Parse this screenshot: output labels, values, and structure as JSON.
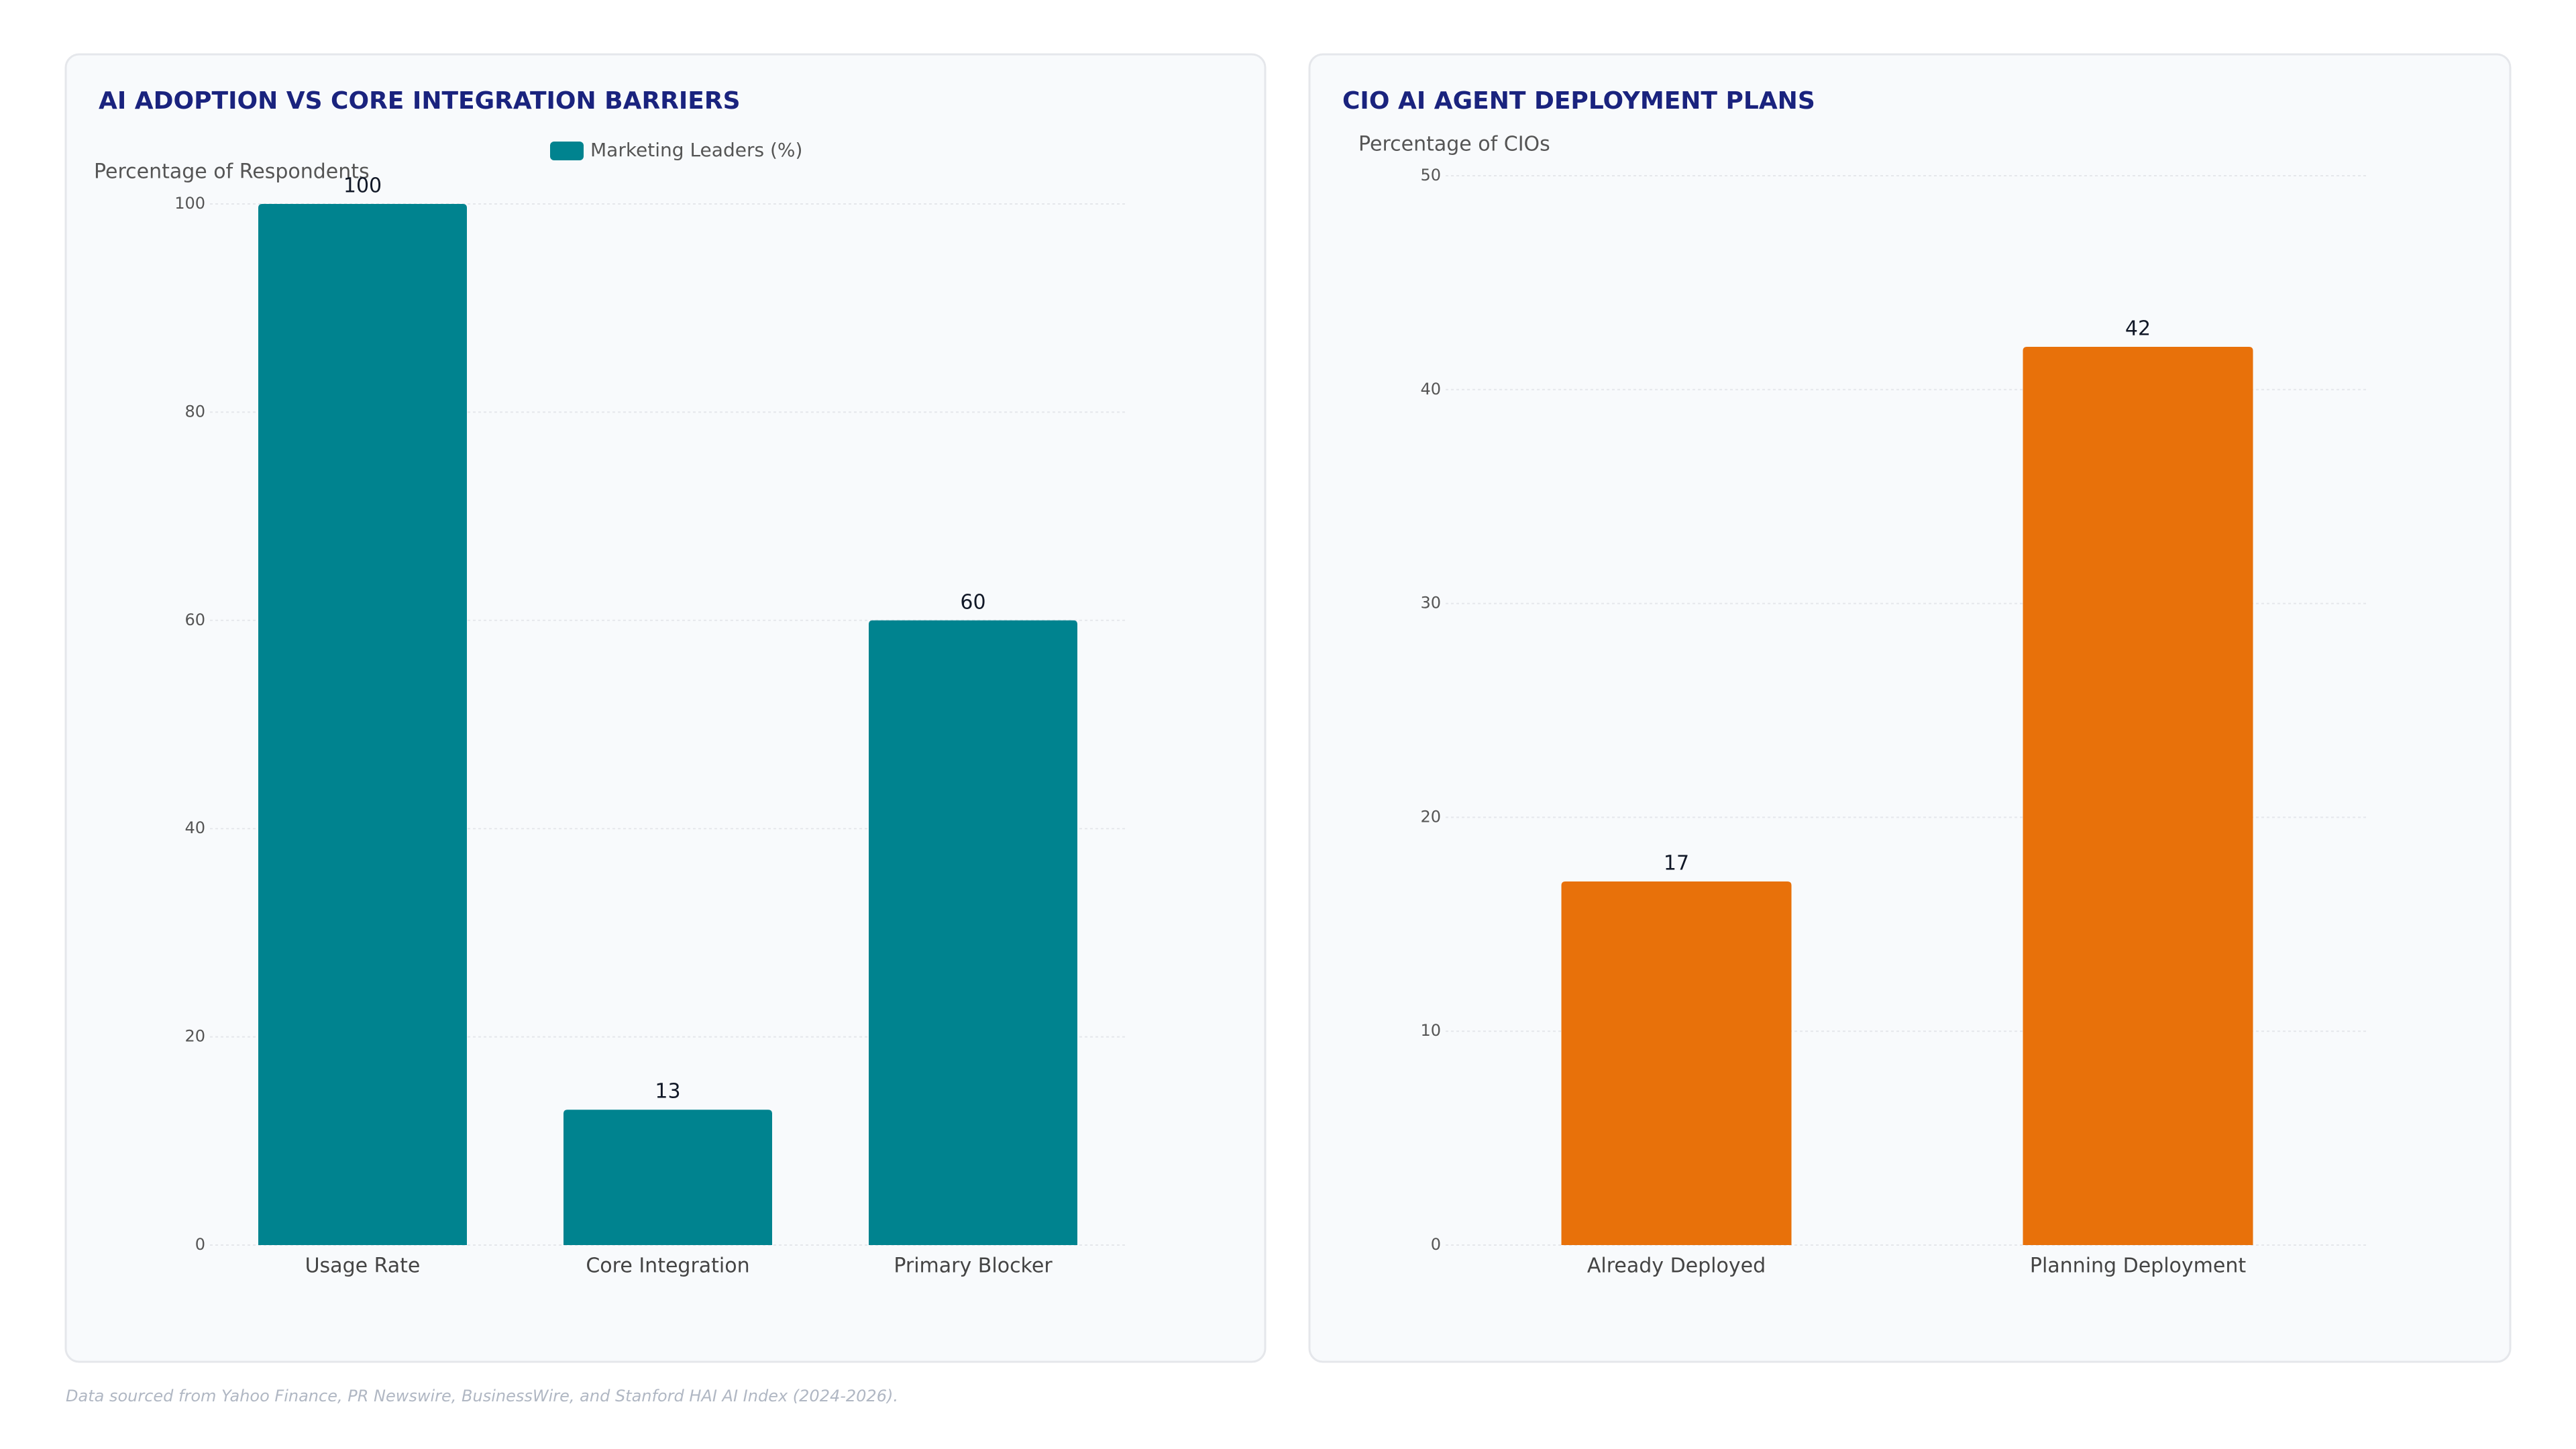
{
  "chart_data": [
    {
      "type": "bar",
      "title": "AI ADOPTION VS CORE INTEGRATION BARRIERS",
      "y_label": "Percentage of Respondents",
      "categories": [
        "Usage Rate",
        "Core Integration",
        "Primary Blocker"
      ],
      "series": [
        {
          "name": "Marketing Leaders (%)",
          "color": "#00838f",
          "values": [
            100,
            13,
            60
          ]
        }
      ],
      "ylim": [
        0,
        100
      ],
      "yticks": [
        0,
        20,
        40,
        60,
        80,
        100
      ],
      "grid": true,
      "legend": "top"
    },
    {
      "type": "bar",
      "title": "CIO AI AGENT DEPLOYMENT PLANS",
      "y_label": "Percentage of CIOs",
      "categories": [
        "Already Deployed",
        "Planning Deployment"
      ],
      "series": [
        {
          "color": "#e8710a",
          "values": [
            17,
            42
          ]
        }
      ],
      "ylim": [
        0,
        50
      ],
      "yticks": [
        0,
        10,
        20,
        30,
        40,
        50
      ],
      "grid": true
    }
  ],
  "footer": "Data sourced from Yahoo Finance, PR Newswire, BusinessWire, and Stanford HAI AI Index (2024-2026)."
}
